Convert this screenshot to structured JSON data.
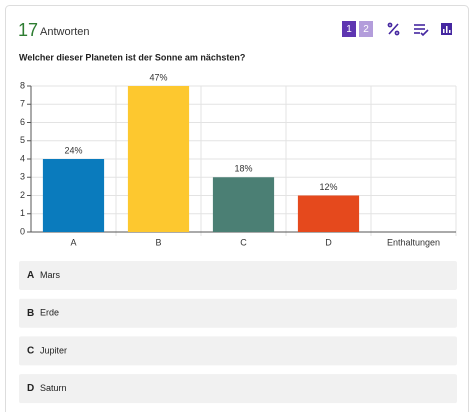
{
  "header": {
    "count": "17",
    "label": "Antworten",
    "toggle": [
      "1",
      "2"
    ]
  },
  "question": "Welcher dieser Planeten ist der Sonne am nächsten?",
  "chart_data": {
    "type": "bar",
    "categories": [
      "A",
      "B",
      "C",
      "D",
      "Enthaltungen"
    ],
    "values": [
      4,
      8,
      3,
      2,
      0
    ],
    "value_labels": [
      "24%",
      "47%",
      "18%",
      "12%",
      null
    ],
    "colors": [
      "#0a7bbd",
      "#fdc82f",
      "#4b7f74",
      "#e5491d",
      "#999999"
    ],
    "ylim": [
      0,
      8
    ],
    "yticks": [
      0,
      1,
      2,
      3,
      4,
      5,
      6,
      7,
      8
    ],
    "grid": true
  },
  "options": [
    {
      "letter": "A",
      "text": "Mars"
    },
    {
      "letter": "B",
      "text": "Erde"
    },
    {
      "letter": "C",
      "text": "Jupiter"
    },
    {
      "letter": "D",
      "text": "Saturn"
    }
  ]
}
